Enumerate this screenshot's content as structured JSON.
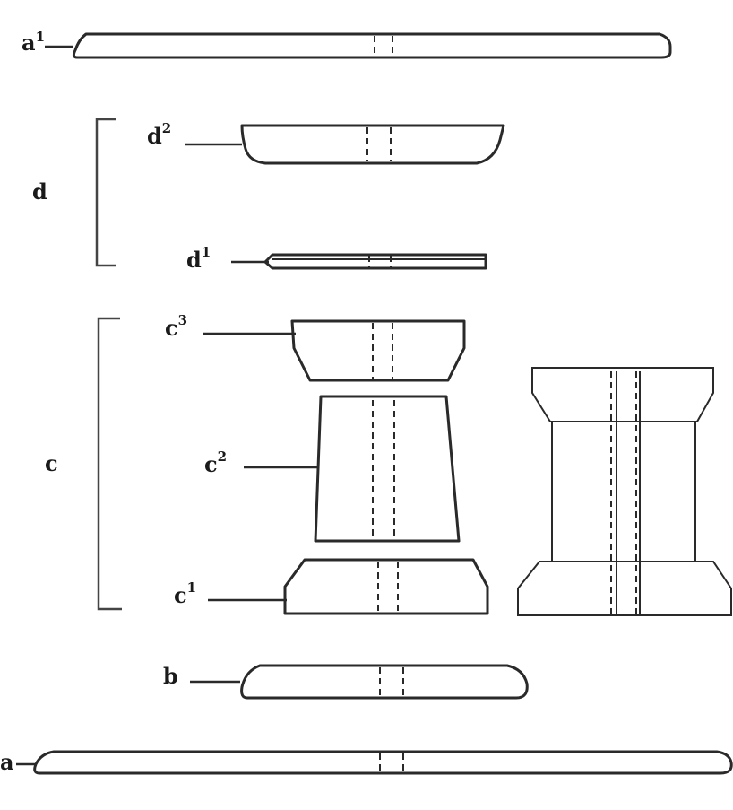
{
  "labels": {
    "a1_base": "a",
    "a1_sup": "1",
    "d2_base": "d",
    "d2_sup": "2",
    "d": "d",
    "d1_base": "d",
    "d1_sup": "1",
    "c3_base": "c",
    "c3_sup": "3",
    "c": "c",
    "c2_base": "c",
    "c2_sup": "2",
    "c1_base": "c",
    "c1_sup": "1",
    "b": "b",
    "a": "a"
  }
}
